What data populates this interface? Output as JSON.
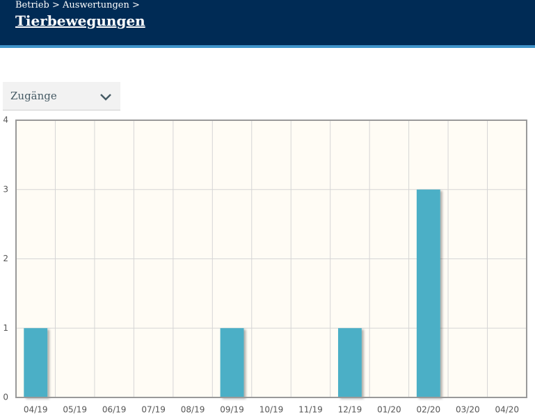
{
  "header": {
    "breadcrumb": "Betrieb > Auswertungen >",
    "title": "Tierbewegungen"
  },
  "dropdown": {
    "selected": "Zugänge"
  },
  "chart_data": {
    "type": "bar",
    "categories": [
      "04/19",
      "05/19",
      "06/19",
      "07/19",
      "08/19",
      "09/19",
      "10/19",
      "11/19",
      "12/19",
      "01/20",
      "02/20",
      "03/20",
      "04/20"
    ],
    "values": [
      1,
      0,
      0,
      0,
      0,
      1,
      0,
      0,
      1,
      0,
      3,
      0,
      0
    ],
    "color": "#4bafc6",
    "ylim": [
      0,
      4
    ],
    "yticks": [
      0,
      1,
      2,
      3,
      4
    ],
    "grid": true
  }
}
